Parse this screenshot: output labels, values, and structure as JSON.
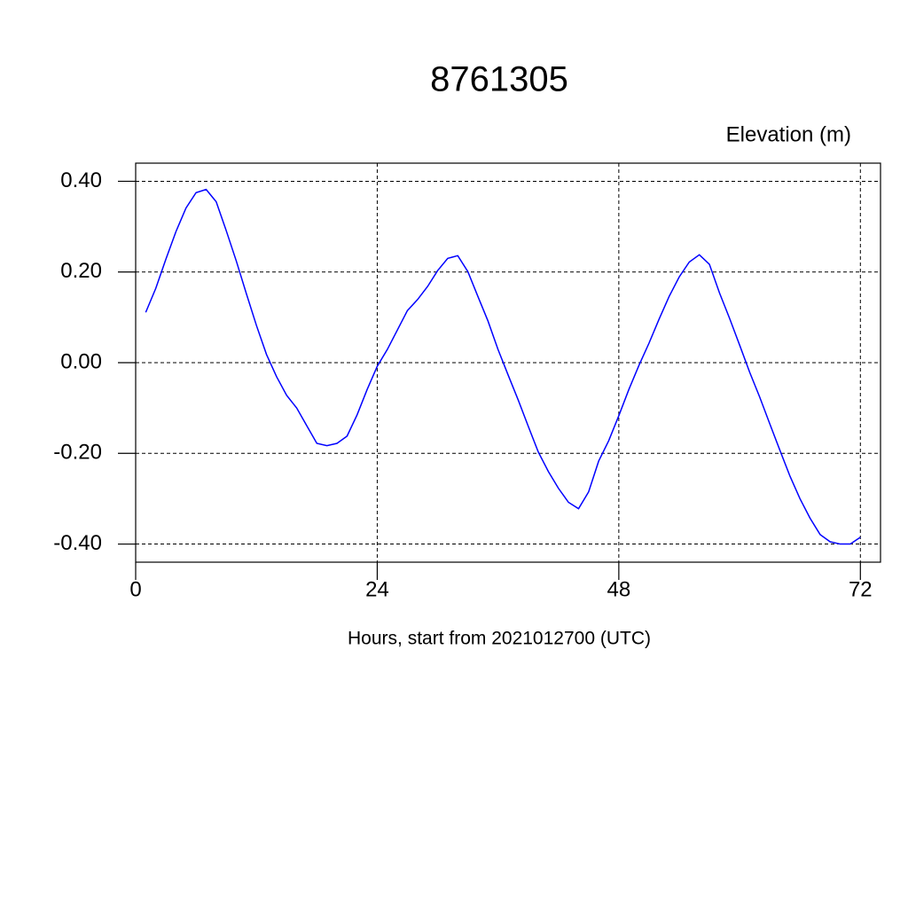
{
  "chart_data": {
    "type": "line",
    "title": "8761305",
    "ylabel": "Elevation (m)",
    "xlabel": "Hours, start from 2021012700 (UTC)",
    "x": [
      1,
      2,
      3,
      4,
      5,
      6,
      7,
      8,
      9,
      10,
      11,
      12,
      13,
      14,
      15,
      16,
      17,
      18,
      19,
      20,
      21,
      22,
      23,
      24,
      25,
      26,
      27,
      28,
      29,
      30,
      31,
      32,
      33,
      34,
      35,
      36,
      37,
      38,
      39,
      40,
      41,
      42,
      43,
      44,
      45,
      46,
      47,
      48,
      49,
      50,
      51,
      52,
      53,
      54,
      55,
      56,
      57,
      58,
      59,
      60,
      61,
      62,
      63,
      64,
      65,
      66,
      67,
      68,
      69,
      70,
      71,
      72
    ],
    "series": [
      {
        "color": "#0000ff",
        "values": [
          0.111,
          0.164,
          0.228,
          0.289,
          0.341,
          0.375,
          0.382,
          0.355,
          0.291,
          0.224,
          0.152,
          0.082,
          0.018,
          -0.031,
          -0.072,
          -0.1,
          -0.139,
          -0.178,
          -0.183,
          -0.178,
          -0.162,
          -0.115,
          -0.059,
          -0.008,
          0.029,
          0.072,
          0.115,
          0.139,
          0.168,
          0.203,
          0.23,
          0.236,
          0.201,
          0.146,
          0.092,
          0.029,
          -0.027,
          -0.082,
          -0.14,
          -0.197,
          -0.24,
          -0.277,
          -0.308,
          -0.322,
          -0.285,
          -0.217,
          -0.172,
          -0.117,
          -0.059,
          -0.006,
          0.043,
          0.096,
          0.146,
          0.189,
          0.222,
          0.238,
          0.217,
          0.154,
          0.098,
          0.039,
          -0.021,
          -0.076,
          -0.135,
          -0.193,
          -0.25,
          -0.3,
          -0.343,
          -0.379,
          -0.395,
          -0.4,
          -0.4,
          -0.385
        ]
      }
    ],
    "xlim": [
      0,
      74
    ],
    "xticks": [
      0,
      24,
      48,
      72
    ],
    "ylim": [
      -0.44,
      0.44
    ],
    "yticks": [
      {
        "value": -0.4,
        "label": "-0.40"
      },
      {
        "value": -0.2,
        "label": "-0.20"
      },
      {
        "value": 0,
        "label": "0.00"
      },
      {
        "value": 0.2,
        "label": "0.20"
      },
      {
        "value": 0.4,
        "label": "0.40"
      }
    ],
    "grid": true
  }
}
